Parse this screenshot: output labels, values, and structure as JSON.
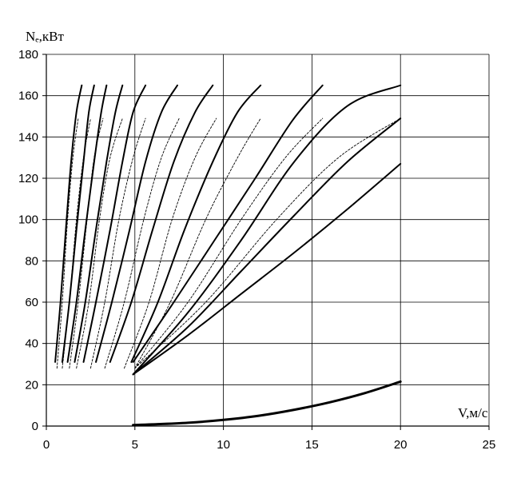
{
  "chart_data": {
    "type": "line",
    "xlabel": "V,м/с",
    "ylabel": "Nₑ,кВт",
    "xlim": [
      0,
      25
    ],
    "ylim": [
      0,
      180
    ],
    "xticks": [
      0,
      5,
      10,
      15,
      20,
      25
    ],
    "yticks": [
      0,
      20,
      40,
      60,
      80,
      100,
      120,
      140,
      160,
      180
    ],
    "grid": true,
    "legend": "none",
    "series": [
      {
        "style": "solid",
        "x": [
          0.5,
          0.8,
          1.1,
          1.4,
          1.7,
          2.0
        ],
        "y": [
          31,
          60,
          95,
          128,
          152,
          165
        ]
      },
      {
        "style": "solid",
        "x": [
          0.9,
          1.3,
          1.7,
          2.1,
          2.4,
          2.7
        ],
        "y": [
          31,
          60,
          95,
          128,
          152,
          165
        ]
      },
      {
        "style": "solid",
        "x": [
          1.2,
          1.7,
          2.2,
          2.7,
          3.1,
          3.4
        ],
        "y": [
          31,
          60,
          95,
          128,
          152,
          165
        ]
      },
      {
        "style": "solid",
        "x": [
          1.6,
          2.2,
          2.8,
          3.4,
          3.9,
          4.3
        ],
        "y": [
          31,
          60,
          95,
          128,
          152,
          165
        ]
      },
      {
        "style": "solid",
        "x": [
          2.1,
          2.8,
          3.6,
          4.3,
          4.9,
          5.6
        ],
        "y": [
          31,
          60,
          95,
          128,
          152,
          165
        ]
      },
      {
        "style": "solid",
        "x": [
          2.8,
          3.7,
          4.7,
          5.6,
          6.5,
          7.4
        ],
        "y": [
          31,
          60,
          95,
          128,
          152,
          165
        ]
      },
      {
        "style": "solid",
        "x": [
          3.6,
          4.8,
          6.0,
          7.2,
          8.4,
          9.4
        ],
        "y": [
          31,
          60,
          95,
          128,
          152,
          165
        ]
      },
      {
        "style": "solid",
        "x": [
          4.8,
          6.3,
          7.8,
          9.4,
          10.8,
          12.1
        ],
        "y": [
          31,
          60,
          95,
          128,
          152,
          165
        ]
      },
      {
        "style": "solid",
        "x": [
          4.9,
          7.2,
          9.5,
          11.8,
          13.9,
          15.6
        ],
        "y": [
          31,
          60,
          90,
          120,
          148,
          165
        ]
      },
      {
        "style": "solid",
        "x": [
          4.9,
          8.0,
          11.0,
          14.0,
          17.0,
          20.0
        ],
        "y": [
          25,
          55,
          90,
          128,
          155,
          165
        ]
      },
      {
        "style": "solid",
        "x": [
          4.9,
          8.0,
          11.0,
          14.0,
          17.0,
          20.0
        ],
        "y": [
          25,
          48,
          75,
          102,
          128,
          149
        ]
      },
      {
        "style": "solid",
        "x": [
          4.9,
          8.0,
          11.0,
          14.0,
          17.0,
          20.0
        ],
        "y": [
          25,
          44,
          64,
          84,
          105,
          127
        ]
      },
      {
        "style": "dashed",
        "x": [
          0.6,
          0.9,
          1.2,
          1.5,
          1.8
        ],
        "y": [
          28,
          60,
          100,
          130,
          149
        ]
      },
      {
        "style": "dashed",
        "x": [
          0.9,
          1.3,
          1.7,
          2.1,
          2.5
        ],
        "y": [
          28,
          60,
          100,
          130,
          149
        ]
      },
      {
        "style": "dashed",
        "x": [
          1.3,
          1.8,
          2.3,
          2.7,
          3.2
        ],
        "y": [
          28,
          60,
          100,
          130,
          149
        ]
      },
      {
        "style": "dashed",
        "x": [
          1.7,
          2.4,
          3.0,
          3.6,
          4.3
        ],
        "y": [
          28,
          60,
          100,
          130,
          149
        ]
      },
      {
        "style": "dashed",
        "x": [
          2.5,
          3.3,
          4.1,
          4.9,
          5.6
        ],
        "y": [
          28,
          60,
          100,
          130,
          149
        ]
      },
      {
        "style": "dashed",
        "x": [
          3.3,
          4.4,
          5.5,
          6.5,
          7.5
        ],
        "y": [
          28,
          60,
          100,
          130,
          149
        ]
      },
      {
        "style": "dashed",
        "x": [
          4.4,
          5.8,
          7.1,
          8.4,
          9.6
        ],
        "y": [
          28,
          60,
          100,
          130,
          149
        ]
      },
      {
        "style": "dashed",
        "x": [
          5.0,
          7.0,
          9.0,
          10.8,
          12.1
        ],
        "y": [
          28,
          60,
          100,
          130,
          149
        ]
      },
      {
        "style": "dashed",
        "x": [
          5.0,
          8.0,
          11.0,
          13.5,
          15.6
        ],
        "y": [
          28,
          60,
          100,
          130,
          149
        ]
      },
      {
        "style": "dashed",
        "x": [
          5.0,
          9.0,
          13.0,
          16.5,
          20.0
        ],
        "y": [
          28,
          60,
          100,
          130,
          149
        ]
      },
      {
        "style": "thick",
        "x": [
          4.9,
          6,
          8,
          10,
          12,
          14,
          16,
          18,
          20
        ],
        "y": [
          0.5,
          0.8,
          1.6,
          3.0,
          5.0,
          7.9,
          11.5,
          16.0,
          21.5
        ]
      }
    ]
  }
}
